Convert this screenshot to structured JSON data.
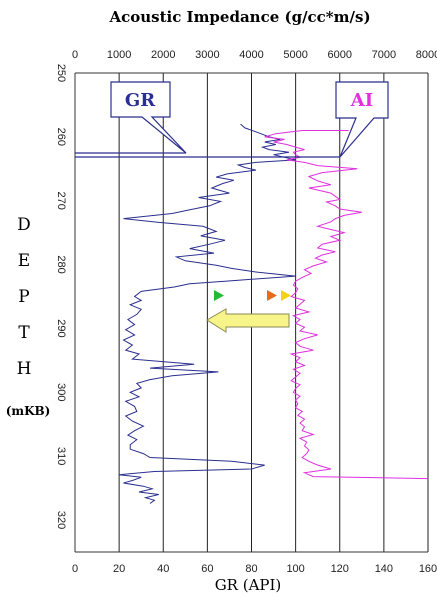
{
  "chart_data": {
    "type": "line",
    "title": "Acoustic Impedance (g/cc*m/s)",
    "xlabel": "GR (API)",
    "ylabel_letters": [
      "D",
      "E",
      "P",
      "T",
      "H"
    ],
    "ylabel_unit": "(mKB)",
    "top_axis": {
      "range": [
        0,
        8000
      ],
      "ticks": [
        "0",
        "1000",
        "2000",
        "3000",
        "4000",
        "5000",
        "6000",
        "7000",
        "8000"
      ]
    },
    "bottom_axis": {
      "range": [
        0,
        160
      ],
      "ticks": [
        "0",
        "20",
        "40",
        "60",
        "80",
        "100",
        "120",
        "140",
        "160"
      ]
    },
    "y_axis": {
      "range": [
        250,
        325
      ],
      "inverted": true,
      "ticks": [
        "250",
        "260",
        "270",
        "280",
        "290",
        "300",
        "310",
        "320"
      ]
    },
    "grid": "vertical",
    "series": [
      {
        "name": "GR",
        "axis": "bottom",
        "color": "#2b2f8f",
        "points": [
          [
            75,
            258
          ],
          [
            77,
            258.6
          ],
          [
            82,
            259.2
          ],
          [
            85,
            259.6
          ],
          [
            88,
            260
          ],
          [
            93,
            260.4
          ],
          [
            86,
            260.8
          ],
          [
            91,
            261.2
          ],
          [
            85,
            261.6
          ],
          [
            88,
            262
          ],
          [
            97,
            262.4
          ],
          [
            90,
            262.8
          ],
          [
            95,
            263.2
          ],
          [
            100,
            263.6
          ],
          [
            82,
            264
          ],
          [
            74,
            264.4
          ],
          [
            77,
            264.8
          ],
          [
            82,
            265.2
          ],
          [
            69,
            265.8
          ],
          [
            64,
            266.3
          ],
          [
            72,
            266.8
          ],
          [
            67,
            267.3
          ],
          [
            62,
            268
          ],
          [
            70,
            268.8
          ],
          [
            56,
            269.5
          ],
          [
            66,
            270.1
          ],
          [
            61,
            270.8
          ],
          [
            51,
            271.5
          ],
          [
            44,
            272
          ],
          [
            22,
            272.8
          ],
          [
            38,
            273.4
          ],
          [
            58,
            274
          ],
          [
            64,
            274.8
          ],
          [
            57,
            275.5
          ],
          [
            68,
            276.2
          ],
          [
            61,
            276.8
          ],
          [
            52,
            277.5
          ],
          [
            63,
            278.2
          ],
          [
            46,
            278.8
          ],
          [
            50,
            279.4
          ],
          [
            64,
            280.1
          ],
          [
            71,
            280.6
          ],
          [
            83,
            281.2
          ],
          [
            100,
            281.8
          ],
          [
            68,
            282.6
          ],
          [
            52,
            283
          ],
          [
            45,
            283.5
          ],
          [
            30,
            284.2
          ],
          [
            27,
            285
          ],
          [
            30,
            285.6
          ],
          [
            25,
            286.3
          ],
          [
            30,
            287
          ],
          [
            28,
            287.8
          ],
          [
            24,
            288.6
          ],
          [
            27,
            289.4
          ],
          [
            23,
            290.2
          ],
          [
            27,
            291
          ],
          [
            22,
            291.8
          ],
          [
            26,
            292.6
          ],
          [
            23,
            293.4
          ],
          [
            29,
            294
          ],
          [
            26,
            294.8
          ],
          [
            54,
            295.6
          ],
          [
            34,
            296.2
          ],
          [
            65,
            296.8
          ],
          [
            44,
            297.4
          ],
          [
            34,
            298
          ],
          [
            28,
            298.6
          ],
          [
            30,
            299.3
          ],
          [
            25,
            300
          ],
          [
            29,
            300.7
          ],
          [
            23,
            301.4
          ],
          [
            27,
            302.2
          ],
          [
            28,
            303
          ],
          [
            23,
            303.7
          ],
          [
            26,
            304.5
          ],
          [
            31,
            305.3
          ],
          [
            27,
            306
          ],
          [
            24,
            306.7
          ],
          [
            28,
            307.4
          ],
          [
            25,
            308.2
          ],
          [
            25,
            308.9
          ],
          [
            31,
            309.6
          ],
          [
            34,
            310.2
          ],
          [
            71,
            310.8
          ],
          [
            86,
            311.4
          ],
          [
            80,
            312
          ],
          [
            36,
            312.4
          ],
          [
            20,
            312.9
          ],
          [
            30,
            313.3
          ],
          [
            26,
            313.8
          ],
          [
            22,
            314.2
          ],
          [
            31,
            314.7
          ],
          [
            35,
            315.1
          ],
          [
            29,
            315.6
          ],
          [
            38,
            316
          ],
          [
            32,
            316.5
          ],
          [
            36,
            316.9
          ],
          [
            34,
            317.4
          ]
        ]
      },
      {
        "name": "AI",
        "axis": "top",
        "color": "#e030e0",
        "points": [
          [
            6200,
            259
          ],
          [
            5150,
            259
          ],
          [
            4550,
            259.5
          ],
          [
            4300,
            260
          ],
          [
            4750,
            260.4
          ],
          [
            4500,
            260.8
          ],
          [
            4800,
            261.2
          ],
          [
            5000,
            261.6
          ],
          [
            5200,
            262
          ],
          [
            4950,
            262.4
          ],
          [
            5000,
            262.8
          ],
          [
            5100,
            263.2
          ],
          [
            4800,
            263.6
          ],
          [
            5200,
            264
          ],
          [
            5500,
            264.5
          ],
          [
            6400,
            265
          ],
          [
            5600,
            265.6
          ],
          [
            5300,
            266.2
          ],
          [
            5500,
            266.9
          ],
          [
            5800,
            267.5
          ],
          [
            5300,
            268
          ],
          [
            5800,
            268.8
          ],
          [
            5900,
            269.3
          ],
          [
            6000,
            269.8
          ],
          [
            5700,
            270.2
          ],
          [
            5900,
            270.8
          ],
          [
            6000,
            271.3
          ],
          [
            6500,
            271.8
          ],
          [
            6100,
            272.3
          ],
          [
            5900,
            272.8
          ],
          [
            5800,
            273.3
          ],
          [
            5500,
            274
          ],
          [
            5800,
            274.5
          ],
          [
            6100,
            275
          ],
          [
            5800,
            275.6
          ],
          [
            6000,
            276.2
          ],
          [
            5600,
            276.8
          ],
          [
            5500,
            277.4
          ],
          [
            5900,
            278
          ],
          [
            5600,
            278.5
          ],
          [
            5450,
            279
          ],
          [
            5700,
            279.6
          ],
          [
            5400,
            280.2
          ],
          [
            5200,
            280.8
          ],
          [
            5350,
            281.4
          ],
          [
            5150,
            282
          ],
          [
            5000,
            282.6
          ],
          [
            4950,
            283.2
          ],
          [
            5050,
            283.8
          ],
          [
            5000,
            284.4
          ],
          [
            4900,
            285
          ],
          [
            5200,
            285.6
          ],
          [
            5100,
            286.2
          ],
          [
            5000,
            286.8
          ],
          [
            5300,
            287.4
          ],
          [
            4950,
            288
          ],
          [
            5100,
            288.6
          ],
          [
            5000,
            289.2
          ],
          [
            5200,
            289.8
          ],
          [
            5100,
            290.4
          ],
          [
            5500,
            291
          ],
          [
            5200,
            291.6
          ],
          [
            5000,
            292.2
          ],
          [
            5100,
            292.8
          ],
          [
            5400,
            293.4
          ],
          [
            4900,
            294
          ],
          [
            5100,
            294.6
          ],
          [
            5000,
            295.2
          ],
          [
            5200,
            295.8
          ],
          [
            4950,
            296.4
          ],
          [
            5100,
            297
          ],
          [
            5000,
            297.6
          ],
          [
            4900,
            298.2
          ],
          [
            5100,
            298.8
          ],
          [
            5000,
            299.4
          ],
          [
            4950,
            300
          ],
          [
            5100,
            300.6
          ],
          [
            5000,
            301.2
          ],
          [
            5050,
            301.8
          ],
          [
            5000,
            302.4
          ],
          [
            5150,
            303
          ],
          [
            5050,
            303.6
          ],
          [
            5200,
            304.2
          ],
          [
            5100,
            304.8
          ],
          [
            5200,
            305.4
          ],
          [
            5150,
            306
          ],
          [
            5400,
            306.6
          ],
          [
            5100,
            307.2
          ],
          [
            5250,
            307.8
          ],
          [
            5200,
            308.4
          ],
          [
            5300,
            309
          ],
          [
            5250,
            309.6
          ],
          [
            5150,
            310.2
          ],
          [
            5300,
            310.8
          ],
          [
            5500,
            311.4
          ],
          [
            5800,
            312
          ],
          [
            5200,
            312.6
          ],
          [
            5400,
            313.2
          ],
          [
            8000,
            313.5
          ]
        ]
      }
    ],
    "callouts": [
      {
        "label": "GR",
        "color": "#2b2f8f"
      },
      {
        "label": "AI",
        "color": "#e030e0"
      }
    ]
  }
}
